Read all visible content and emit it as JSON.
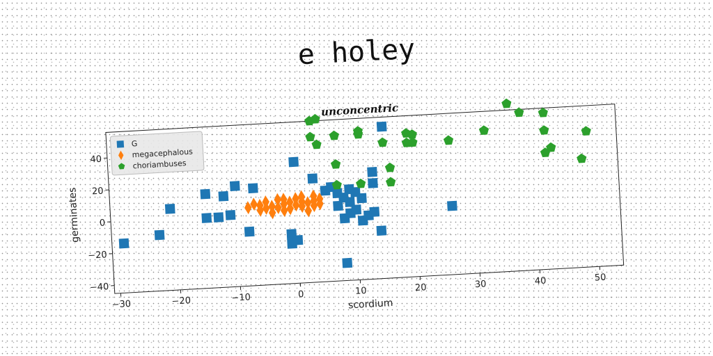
{
  "suptitle": "e holey",
  "chart_data": {
    "type": "scatter",
    "title": "unconcentric",
    "xlabel": "scordium",
    "ylabel": "germinates",
    "xlim": [
      -31,
      54
    ],
    "ylim": [
      -45,
      56
    ],
    "xticks": [
      -30,
      -20,
      -10,
      0,
      10,
      20,
      30,
      40,
      50
    ],
    "yticks": [
      -40,
      -20,
      0,
      20,
      40
    ],
    "grid": false,
    "legend_position": "top-left",
    "series": [
      {
        "name": "G",
        "color": "#1f77b4",
        "marker": "square",
        "points": [
          [
            -29,
            -14
          ],
          [
            -23,
            -10
          ],
          [
            -21,
            6
          ],
          [
            -15,
            14
          ],
          [
            -15,
            -1
          ],
          [
            -13,
            -1
          ],
          [
            -12,
            12
          ],
          [
            -11,
            0
          ],
          [
            -10,
            18
          ],
          [
            -8,
            -11
          ],
          [
            -7,
            16
          ],
          [
            -1,
            -20
          ],
          [
            -1,
            -14
          ],
          [
            0,
            -18
          ],
          [
            0,
            31
          ],
          [
            3,
            20
          ],
          [
            5,
            12
          ],
          [
            6,
            14
          ],
          [
            7,
            10
          ],
          [
            8,
            7
          ],
          [
            8,
            -6
          ],
          [
            9,
            -3
          ],
          [
            9,
            4
          ],
          [
            10,
            -1
          ],
          [
            10,
            10
          ],
          [
            11,
            6
          ],
          [
            11,
            -8
          ],
          [
            12,
            -5
          ],
          [
            13,
            -3
          ],
          [
            13,
            22
          ],
          [
            13,
            15
          ],
          [
            14,
            -15
          ],
          [
            15,
            50
          ],
          [
            8,
            -34
          ],
          [
            26,
            -2
          ],
          [
            9,
            12
          ],
          [
            7,
            2
          ]
        ]
      },
      {
        "name": "megacephalous",
        "color": "#ff7f0e",
        "marker": "diamond",
        "points": [
          [
            -8,
            4
          ],
          [
            -7,
            6
          ],
          [
            -6,
            5
          ],
          [
            -6,
            2
          ],
          [
            -5,
            7
          ],
          [
            -4,
            4
          ],
          [
            -4,
            0
          ],
          [
            -3,
            8
          ],
          [
            -3,
            3
          ],
          [
            -2,
            5
          ],
          [
            -2,
            1
          ],
          [
            -1,
            6
          ],
          [
            -1,
            2
          ],
          [
            0,
            8
          ],
          [
            0,
            4
          ],
          [
            1,
            6
          ],
          [
            1,
            3
          ],
          [
            2,
            5
          ],
          [
            2,
            0
          ],
          [
            3,
            6
          ],
          [
            3,
            3
          ],
          [
            4,
            7
          ],
          [
            4,
            4
          ],
          [
            -5,
            3
          ],
          [
            -2,
            8
          ],
          [
            1,
            9
          ],
          [
            3,
            9
          ]
        ]
      },
      {
        "name": "choriambuses",
        "color": "#2ca02c",
        "marker": "pentagon",
        "points": [
          [
            3,
            56
          ],
          [
            4,
            57
          ],
          [
            3,
            46
          ],
          [
            4,
            41
          ],
          [
            7,
            46
          ],
          [
            7,
            28
          ],
          [
            11,
            46
          ],
          [
            11,
            48
          ],
          [
            15,
            40
          ],
          [
            16,
            24
          ],
          [
            16,
            15
          ],
          [
            19,
            45
          ],
          [
            19,
            39
          ],
          [
            20,
            39
          ],
          [
            20,
            44
          ],
          [
            26,
            39
          ],
          [
            32,
            44
          ],
          [
            36,
            60
          ],
          [
            38,
            54
          ],
          [
            42,
            53
          ],
          [
            42,
            42
          ],
          [
            42,
            28
          ],
          [
            43,
            31
          ],
          [
            48,
            23
          ],
          [
            49,
            40
          ],
          [
            7,
            15
          ],
          [
            11,
            15
          ]
        ]
      }
    ]
  }
}
